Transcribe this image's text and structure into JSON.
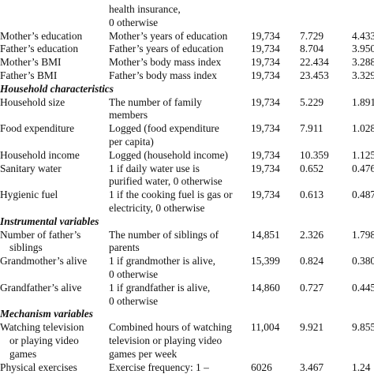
{
  "table": {
    "rows": [
      {
        "variable": [],
        "definition": [
          "health insurance,",
          "0 otherwise"
        ],
        "obs": "",
        "mean": "",
        "sd": ""
      },
      {
        "variable": [
          "Mother’s education"
        ],
        "definition": [
          "Mother’s years of education"
        ],
        "obs": "19,734",
        "mean": "7.729",
        "sd": "4.433"
      },
      {
        "variable": [
          "Father’s education"
        ],
        "definition": [
          "Father’s years of education"
        ],
        "obs": "19,734",
        "mean": "8.704",
        "sd": "3.950"
      },
      {
        "variable": [
          "Mother’s BMI"
        ],
        "definition": [
          "Mother’s body mass index"
        ],
        "obs": "19,734",
        "mean": "22.434",
        "sd": "3.288"
      },
      {
        "variable": [
          "Father’s BMI"
        ],
        "definition": [
          "Father’s body mass index"
        ],
        "obs": "19,734",
        "mean": "23.453",
        "sd": "3.329"
      },
      {
        "section": "Household characteristics"
      },
      {
        "variable": [
          "Household size"
        ],
        "definition": [
          "The number of family",
          "members"
        ],
        "obs": "19,734",
        "mean": "5.229",
        "sd": "1.891"
      },
      {
        "variable": [
          "Food expenditure"
        ],
        "definition": [
          "Logged (food expenditure",
          "per capita)"
        ],
        "obs": "19,734",
        "mean": "7.911",
        "sd": "1.028"
      },
      {
        "variable": [
          "Household income"
        ],
        "definition": [
          "Logged (household income)"
        ],
        "obs": "19,734",
        "mean": "10.359",
        "sd": "1.125"
      },
      {
        "variable": [
          "Sanitary water"
        ],
        "definition": [
          "1 if daily water use is",
          "purified water, 0 otherwise"
        ],
        "obs": "19,734",
        "mean": "0.652",
        "sd": "0.476"
      },
      {
        "variable": [
          "Hygienic fuel"
        ],
        "definition": [
          "1 if the cooking fuel is gas or",
          "electricity, 0 otherwise"
        ],
        "obs": "19,734",
        "mean": "0.613",
        "sd": "0.487"
      },
      {
        "section": "Instrumental variables"
      },
      {
        "variable": [
          "Number of father’s",
          "siblings"
        ],
        "definition": [
          "The number of siblings of",
          "parents"
        ],
        "obs": "14,851",
        "mean": "2.326",
        "sd": "1.798"
      },
      {
        "variable": [
          "Grandmother’s alive"
        ],
        "definition": [
          "1 if grandmother is alive,",
          "0 otherwise"
        ],
        "obs": "15,399",
        "mean": "0.824",
        "sd": "0.380"
      },
      {
        "variable": [
          "Grandfather’s alive"
        ],
        "definition": [
          "1 if grandfather is alive,",
          "0 otherwise"
        ],
        "obs": "14,860",
        "mean": "0.727",
        "sd": "0.445"
      },
      {
        "section": "Mechanism variables"
      },
      {
        "variable": [
          "Watching television",
          "or playing video",
          "games"
        ],
        "definition": [
          "Combined hours of watching",
          "television or playing video",
          "games per week"
        ],
        "obs": "11,004",
        "mean": "9.921",
        "sd": "9.855"
      },
      {
        "variable": [
          "Physical exercises"
        ],
        "definition": [
          "Exercise frequency: 1 –"
        ],
        "obs": "6026",
        "mean": "3.467",
        "sd": "1.24"
      }
    ]
  }
}
